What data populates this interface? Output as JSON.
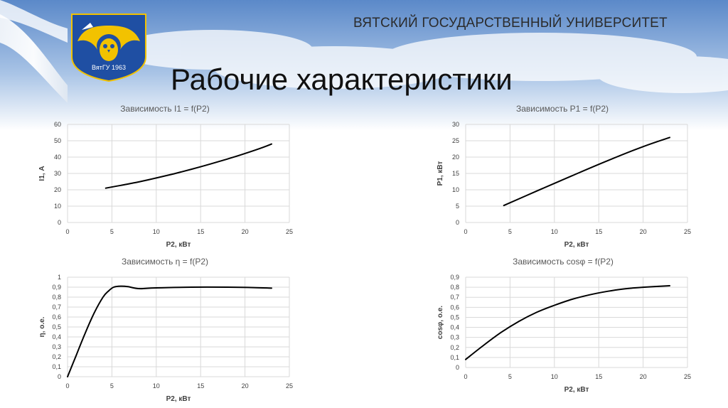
{
  "header": {
    "university": "ВЯТСКИЙ ГОСУДАРСТВЕННЫЙ УНИВЕРСИТЕТ",
    "title": "Рабочие характеристики",
    "emblem_text": "ВятГУ 1963"
  },
  "colors": {
    "sky_top": "#5b89c9",
    "sky_bottom": "#ffffff",
    "emblem_blue": "#1f4fa3",
    "emblem_gold": "#f2c200",
    "series": "#000000",
    "grid": "#d9d9d9"
  },
  "chart_data": [
    {
      "type": "line",
      "title": "Зависимость I1 = f(P2)",
      "xlabel": "P2, кВт",
      "ylabel": "I1, А",
      "xlim": [
        0,
        25
      ],
      "ylim": [
        0,
        60
      ],
      "xticks": [
        0,
        5,
        10,
        15,
        20,
        25
      ],
      "yticks": [
        0,
        10,
        20,
        30,
        40,
        50,
        60
      ],
      "grid": true,
      "series": [
        {
          "x": [
            4.3,
            6,
            8,
            10,
            12,
            14,
            16,
            18,
            20,
            22,
            23
          ],
          "y": [
            21,
            22.7,
            24.8,
            27.2,
            29.8,
            32.6,
            35.6,
            38.8,
            42.2,
            45.9,
            48
          ]
        }
      ]
    },
    {
      "type": "line",
      "title": "Зависимость P1 = f(P2)",
      "xlabel": "P2, кВт",
      "ylabel": "P1, кВт",
      "xlim": [
        0,
        25
      ],
      "ylim": [
        0,
        30
      ],
      "xticks": [
        0,
        5,
        10,
        15,
        20,
        25
      ],
      "yticks": [
        0,
        5,
        10,
        15,
        20,
        25,
        30
      ],
      "grid": true,
      "series": [
        {
          "x": [
            4.3,
            8,
            12,
            16,
            20,
            23
          ],
          "y": [
            5.2,
            9.6,
            14.3,
            18.9,
            23.2,
            26
          ]
        }
      ]
    },
    {
      "type": "line",
      "title": "Зависимость η = f(P2)",
      "xlabel": "P2, кВт",
      "ylabel": "η, о.е.",
      "xlim": [
        0,
        25
      ],
      "ylim": [
        0,
        1
      ],
      "xticks": [
        0,
        5,
        10,
        15,
        20,
        25
      ],
      "yticks": [
        "0",
        "0,1",
        "0,2",
        "0,3",
        "0,4",
        "0,5",
        "0,6",
        "0,7",
        "0,8",
        "0,9",
        "1"
      ],
      "grid": true,
      "series": [
        {
          "x": [
            0,
            1,
            2,
            3,
            4,
            4.6,
            5.2,
            6,
            6.8,
            7.6,
            8.3,
            10,
            14,
            18,
            21,
            23
          ],
          "y": [
            0,
            0.22,
            0.44,
            0.64,
            0.8,
            0.86,
            0.9,
            0.91,
            0.905,
            0.89,
            0.885,
            0.893,
            0.9,
            0.9,
            0.896,
            0.89
          ]
        }
      ]
    },
    {
      "type": "line",
      "title": "Зависимость cosφ = f(P2)",
      "xlabel": "P2, кВт",
      "ylabel": "cosφ, о.е.",
      "xlim": [
        0,
        25
      ],
      "ylim": [
        0,
        0.9
      ],
      "xticks": [
        0,
        5,
        10,
        15,
        20,
        25
      ],
      "yticks": [
        "0",
        "0,1",
        "0,2",
        "0,3",
        "0,4",
        "0,5",
        "0,6",
        "0,7",
        "0,8",
        "0,9"
      ],
      "grid": true,
      "series": [
        {
          "x": [
            0,
            2,
            4,
            6,
            8,
            10,
            12,
            14,
            16,
            18,
            20,
            23
          ],
          "y": [
            0.08,
            0.22,
            0.35,
            0.46,
            0.55,
            0.62,
            0.68,
            0.725,
            0.76,
            0.785,
            0.8,
            0.815
          ]
        }
      ]
    }
  ]
}
